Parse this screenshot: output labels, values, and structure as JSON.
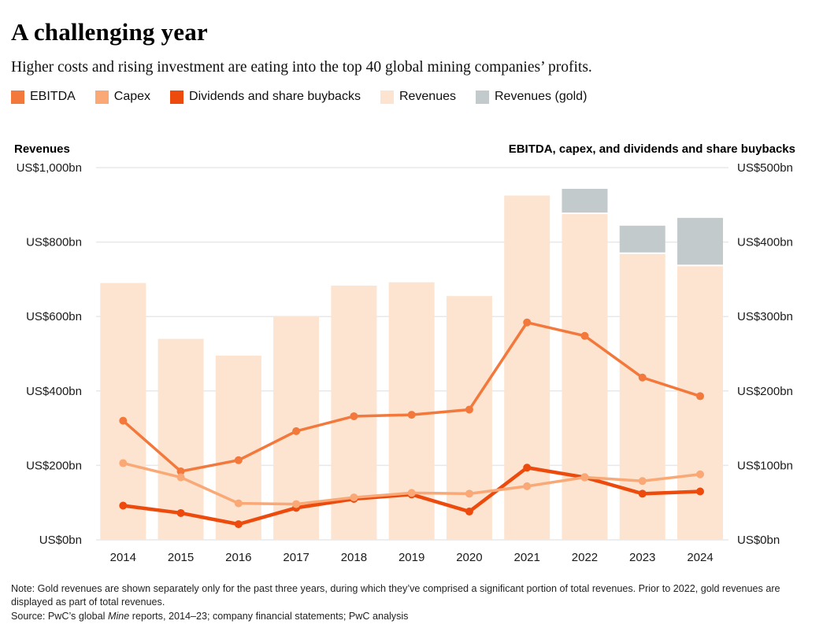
{
  "header": {
    "title": "A challenging year",
    "subtitle": "Higher costs and rising investment are eating into the top 40 global mining companies’ profits."
  },
  "legend": {
    "items": [
      {
        "label": "EBITDA",
        "color": "#f2783c"
      },
      {
        "label": "Capex",
        "color": "#f9a876"
      },
      {
        "label": "Dividends and share buybacks",
        "color": "#ed4a0d"
      },
      {
        "label": "Revenues",
        "color": "#fce4d0"
      },
      {
        "label": "Revenues (gold)",
        "color": "#c3cacc"
      }
    ]
  },
  "chart_data": {
    "type": "combo-bar-line",
    "categories": [
      "2014",
      "2015",
      "2016",
      "2017",
      "2018",
      "2019",
      "2020",
      "2021",
      "2022",
      "2023",
      "2024"
    ],
    "left_axis": {
      "title": "Revenues",
      "unit": "US$bn",
      "range": [
        0,
        1000
      ],
      "tick_labels_top_to_bottom": [
        "US$1,000bn",
        "US$800bn",
        "US$600bn",
        "US$400bn",
        "US$200bn",
        "US$0bn"
      ]
    },
    "right_axis": {
      "title": "EBITDA, capex, and dividends and share buybacks",
      "unit": "US$bn",
      "range": [
        0,
        500
      ],
      "tick_labels_top_to_bottom": [
        "US$500bn",
        "US$400bn",
        "US$300bn",
        "US$200bn",
        "US$100bn",
        "US$0bn"
      ]
    },
    "bars": {
      "axis": "left",
      "stacked": true,
      "series": [
        {
          "name": "Revenues",
          "color": "#fce4d0",
          "values": [
            690,
            540,
            495,
            600,
            683,
            692,
            655,
            925,
            875,
            768,
            735
          ]
        },
        {
          "name": "Revenues (gold)",
          "color": "#c3cacc",
          "values": [
            0,
            0,
            0,
            0,
            0,
            0,
            0,
            0,
            68,
            76,
            130
          ]
        }
      ]
    },
    "lines": {
      "axis": "right",
      "series": [
        {
          "name": "EBITDA",
          "color": "#f2783c",
          "width": 3.5,
          "values": [
            160,
            92,
            107,
            146,
            166,
            168,
            175,
            292,
            274,
            218,
            193
          ]
        },
        {
          "name": "Dividends and share buybacks",
          "color": "#ed4a0d",
          "width": 4.5,
          "values": [
            46,
            36,
            21,
            43,
            55,
            61,
            38,
            97,
            84,
            62,
            65
          ]
        },
        {
          "name": "Capex",
          "color": "#f9a876",
          "width": 3.5,
          "values": [
            103,
            84,
            49,
            48,
            57,
            63,
            62,
            72,
            84,
            79,
            88
          ]
        }
      ]
    },
    "grid": true,
    "legend_position": "top"
  },
  "footer": {
    "note": "Note: Gold revenues are shown separately only for the past three years, during which they’ve comprised a significant portion of total revenues. Prior to 2022, gold revenues are displayed as part of total revenues.",
    "source": {
      "prefix": "Source: PwC’s global ",
      "italic": "Mine",
      "suffix": " reports, 2014–23; company financial statements; PwC analysis"
    }
  }
}
